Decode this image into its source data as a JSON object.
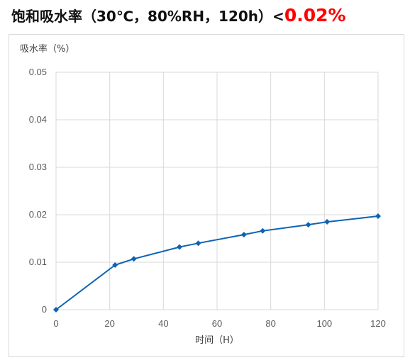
{
  "title": {
    "main": "饱和吸水率（30℃，80%RH，120h）<",
    "highlight": "0.02%"
  },
  "colors": {
    "series": "#0e63b5",
    "highlight": "#ff0000",
    "grid": "#d9d9d9"
  },
  "chart_data": {
    "type": "line",
    "title": "饱和吸水率（30℃，80%RH，120h）<0.02%",
    "xlabel": "时间（H）",
    "ylabel": "吸水率（%）",
    "xlim": [
      0,
      120
    ],
    "ylim": [
      0,
      0.05
    ],
    "xticks": [
      0,
      20,
      40,
      60,
      80,
      100,
      120
    ],
    "yticks": [
      0,
      0.01,
      0.02,
      0.03,
      0.04,
      0.05
    ],
    "ytick_labels": [
      "0",
      "0.01",
      "0.02",
      "0.03",
      "0.04",
      "0.05"
    ],
    "grid": true,
    "marker": "diamond",
    "series": [
      {
        "x": [
          0,
          22,
          29,
          46,
          53,
          70,
          77,
          94,
          101,
          120
        ],
        "y": [
          0,
          0.0094,
          0.0107,
          0.0132,
          0.014,
          0.0158,
          0.0166,
          0.0179,
          0.0185,
          0.0197
        ]
      }
    ]
  }
}
